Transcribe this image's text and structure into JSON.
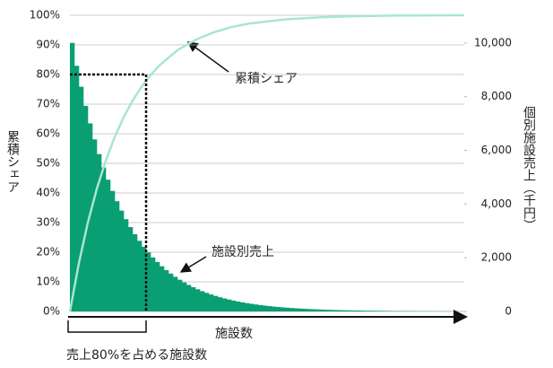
{
  "chart_data": {
    "type": "pareto",
    "ylabel": "累積シェア",
    "y2label": "個別施設売上（千円）",
    "xlabel": "施設数",
    "annotations": {
      "line": "累積シェア",
      "bars": "施設別売上",
      "bracket": "売上80%を占める施設数"
    },
    "threshold": {
      "share": 80,
      "count": 17
    },
    "xlim": [
      0,
      88
    ],
    "ylim": [
      0,
      100
    ],
    "yticks": [
      {
        "value": 0,
        "label": "0%"
      },
      {
        "value": 10,
        "label": "10%"
      },
      {
        "value": 20,
        "label": "20%"
      },
      {
        "value": 30,
        "label": "30%"
      },
      {
        "value": 40,
        "label": "40%"
      },
      {
        "value": 50,
        "label": "50%"
      },
      {
        "value": 60,
        "label": "60%"
      },
      {
        "value": 70,
        "label": "70%"
      },
      {
        "value": 80,
        "label": "80%"
      },
      {
        "value": 90,
        "label": "90%"
      },
      {
        "value": 100,
        "label": "100%"
      }
    ],
    "y2lim": [
      0,
      11030
    ],
    "y2ticks": [
      0,
      {
        "value": 2000,
        "label": "2,000"
      },
      {
        "value": 4000,
        "label": "4,000"
      },
      {
        "value": 6000,
        "label": "6,000"
      },
      {
        "value": 8000,
        "label": "8,000"
      },
      {
        "value": 10000,
        "label": "10,000"
      }
    ],
    "grid": true,
    "series": [
      {
        "name": "施設別売上",
        "axis": "y2",
        "color": "#0a9e73",
        "values": [
          10000,
          9148,
          8369,
          7656,
          7004,
          6407,
          5861,
          5362,
          4905,
          4487,
          4105,
          3755,
          3435,
          3143,
          2875,
          2630,
          2406,
          2201,
          2013,
          1842,
          1685,
          1541,
          1410,
          1290,
          1180,
          1080,
          988,
          903,
          826,
          756,
          692,
          633,
          579,
          529,
          484,
          443,
          405,
          371,
          339,
          310,
          284,
          260,
          238,
          217,
          199,
          182,
          166,
          152,
          139,
          128,
          117,
          107,
          98,
          89,
          82,
          75,
          68,
          63,
          57,
          52,
          48,
          44,
          40,
          37,
          34,
          31,
          28,
          26,
          24,
          22,
          20,
          18,
          16,
          15,
          14,
          13,
          12,
          11,
          10,
          9,
          8,
          7,
          7,
          6,
          6,
          5,
          5,
          4
        ]
      },
      {
        "name": "累積シェア",
        "color": "#a8e6cf",
        "x": [
          0,
          2,
          4,
          6,
          8,
          10,
          12,
          14,
          16,
          18,
          20,
          24,
          28,
          32,
          36,
          40,
          48,
          56,
          64,
          72,
          88
        ],
        "values": [
          0,
          16.3,
          30,
          41.4,
          50.9,
          58.9,
          65.6,
          71.2,
          75.9,
          79.8,
          83.1,
          88.2,
          91.7,
          94.2,
          96,
          97.2,
          98.6,
          99.3,
          99.7,
          99.9,
          100
        ]
      }
    ]
  }
}
